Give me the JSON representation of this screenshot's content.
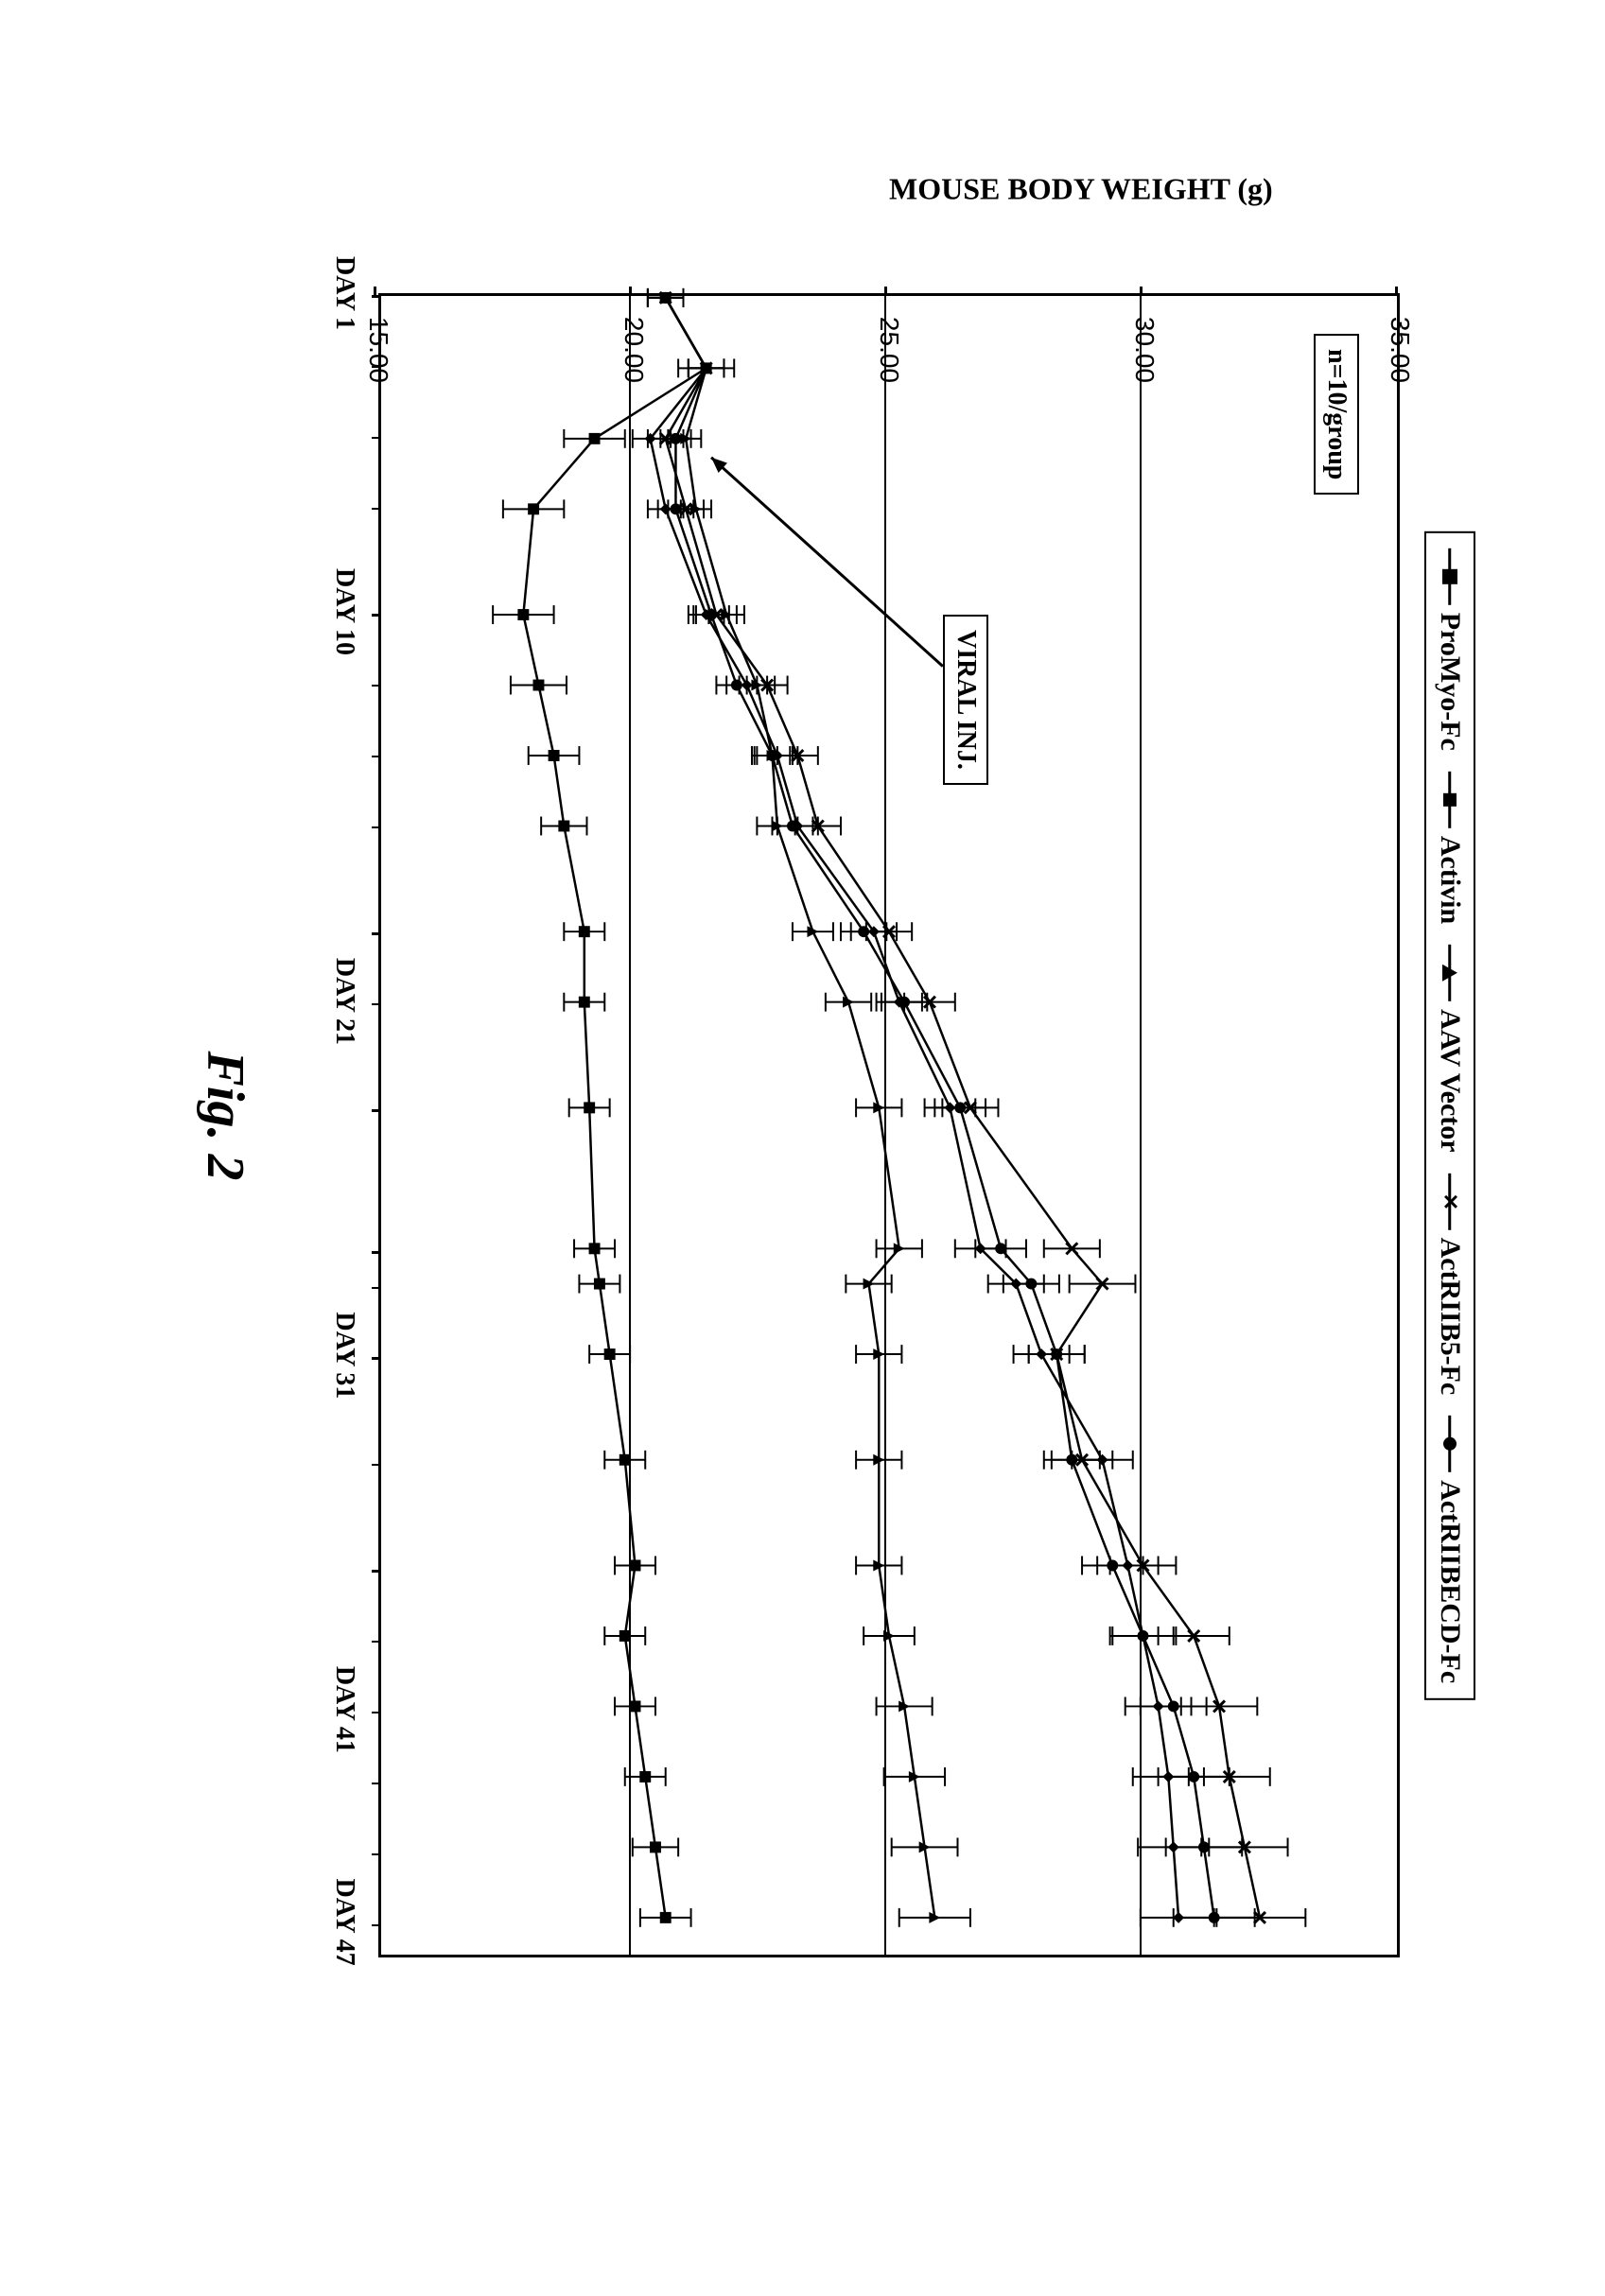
{
  "figure_caption": "Fig. 2",
  "y_axis_title": "MOUSE BODY WEIGHT (g)",
  "info_n": "n=10/group",
  "info_viral": "VIRAL INJ.",
  "legend": [
    {
      "label": "ProMyo-Fc",
      "marker": "diamond"
    },
    {
      "label": "Activin",
      "marker": "square"
    },
    {
      "label": "AAV Vector",
      "marker": "triangle"
    },
    {
      "label": "ActRIIB5-Fc",
      "marker": "xmark"
    },
    {
      "label": "ActRIIBECD-Fc",
      "marker": "circle"
    }
  ],
  "chart": {
    "type": "line",
    "y_min": 15.0,
    "y_max": 35.0,
    "y_ticks": [
      15.0,
      20.0,
      25.0,
      30.0,
      35.0
    ],
    "y_gridlines": [
      20.0,
      25.0,
      30.0
    ],
    "x_min": 1,
    "x_max": 48,
    "x_days": [
      1,
      3,
      5,
      7,
      10,
      12,
      14,
      16,
      19,
      21,
      24,
      28,
      29,
      31,
      34,
      37,
      39,
      41,
      43,
      45,
      47
    ],
    "x_tick_labels": [
      {
        "day": 1,
        "label": "DAY 1"
      },
      {
        "day": 10,
        "label": "DAY 10"
      },
      {
        "day": 21,
        "label": "DAY 21"
      },
      {
        "day": 31,
        "label": "DAY 31"
      },
      {
        "day": 41,
        "label": "DAY 41"
      },
      {
        "day": 47,
        "label": "DAY 47"
      }
    ],
    "colors": {
      "line": "#000000",
      "grid": "#000000",
      "background": "#ffffff",
      "border": "#000000",
      "text": "#000000"
    },
    "line_width": 2.5,
    "error_cap_width": 10,
    "marker_size": 12,
    "series": {
      "ProMyo-Fc": {
        "marker": "diamond",
        "y": [
          20.6,
          21.4,
          20.3,
          20.6,
          21.4,
          22.2,
          22.8,
          23.2,
          24.7,
          25.2,
          26.2,
          26.8,
          27.5,
          28.0,
          29.2,
          29.7,
          30.0,
          30.3,
          30.5,
          30.6,
          30.7
        ],
        "err": [
          0.35,
          0.35,
          0.35,
          0.35,
          0.35,
          0.4,
          0.4,
          0.4,
          0.45,
          0.45,
          0.5,
          0.5,
          0.55,
          0.55,
          0.6,
          0.6,
          0.65,
          0.65,
          0.7,
          0.7,
          0.75
        ]
      },
      "Activin": {
        "marker": "square",
        "y": [
          20.6,
          21.4,
          19.2,
          18.0,
          17.8,
          18.1,
          18.4,
          18.6,
          19.0,
          19.0,
          19.1,
          19.2,
          19.3,
          19.5,
          19.8,
          20.0,
          19.8,
          20.0,
          20.2,
          20.4,
          20.6
        ],
        "err": [
          0.35,
          0.55,
          0.6,
          0.6,
          0.6,
          0.55,
          0.5,
          0.45,
          0.4,
          0.4,
          0.4,
          0.4,
          0.4,
          0.4,
          0.4,
          0.4,
          0.4,
          0.4,
          0.4,
          0.45,
          0.5
        ]
      },
      "AAV Vector": {
        "marker": "triangle",
        "y": [
          20.6,
          21.4,
          21.0,
          21.2,
          21.8,
          22.4,
          22.7,
          22.8,
          23.5,
          24.2,
          24.8,
          25.2,
          24.6,
          24.8,
          24.8,
          24.8,
          25.0,
          25.3,
          25.5,
          25.7,
          25.9
        ],
        "err": [
          0.35,
          0.35,
          0.3,
          0.3,
          0.35,
          0.35,
          0.35,
          0.4,
          0.4,
          0.45,
          0.45,
          0.45,
          0.45,
          0.45,
          0.45,
          0.45,
          0.5,
          0.55,
          0.6,
          0.65,
          0.7
        ]
      },
      "ActRIIB5-Fc": {
        "marker": "xmark",
        "y": [
          20.6,
          21.4,
          20.6,
          21.0,
          21.6,
          22.6,
          23.2,
          23.6,
          25.0,
          25.8,
          26.6,
          28.6,
          29.2,
          28.3,
          28.8,
          30.0,
          31.0,
          31.5,
          31.7,
          32.0,
          32.3
        ],
        "err": [
          0.35,
          0.35,
          0.35,
          0.35,
          0.4,
          0.4,
          0.4,
          0.45,
          0.45,
          0.5,
          0.55,
          0.55,
          0.65,
          0.55,
          0.6,
          0.65,
          0.7,
          0.75,
          0.8,
          0.85,
          0.9
        ]
      },
      "ActRIIBECD-Fc": {
        "marker": "circle",
        "y": [
          20.6,
          21.4,
          20.8,
          20.8,
          21.5,
          22.0,
          22.7,
          23.1,
          24.5,
          25.3,
          26.4,
          27.2,
          27.8,
          28.3,
          28.6,
          29.4,
          30.0,
          30.6,
          31.0,
          31.2,
          31.4
        ],
        "err": [
          0.35,
          0.35,
          0.3,
          0.35,
          0.35,
          0.4,
          0.4,
          0.4,
          0.45,
          0.45,
          0.5,
          0.5,
          0.55,
          0.55,
          0.55,
          0.6,
          0.6,
          0.65,
          0.7,
          0.75,
          0.8
        ]
      }
    },
    "arrow": {
      "from_day": 12,
      "to_day": 5,
      "y": 26.8
    }
  },
  "fonts": {
    "axis_label": 32,
    "tick_label": 28,
    "legend": 30,
    "caption": 56,
    "info": 28
  }
}
